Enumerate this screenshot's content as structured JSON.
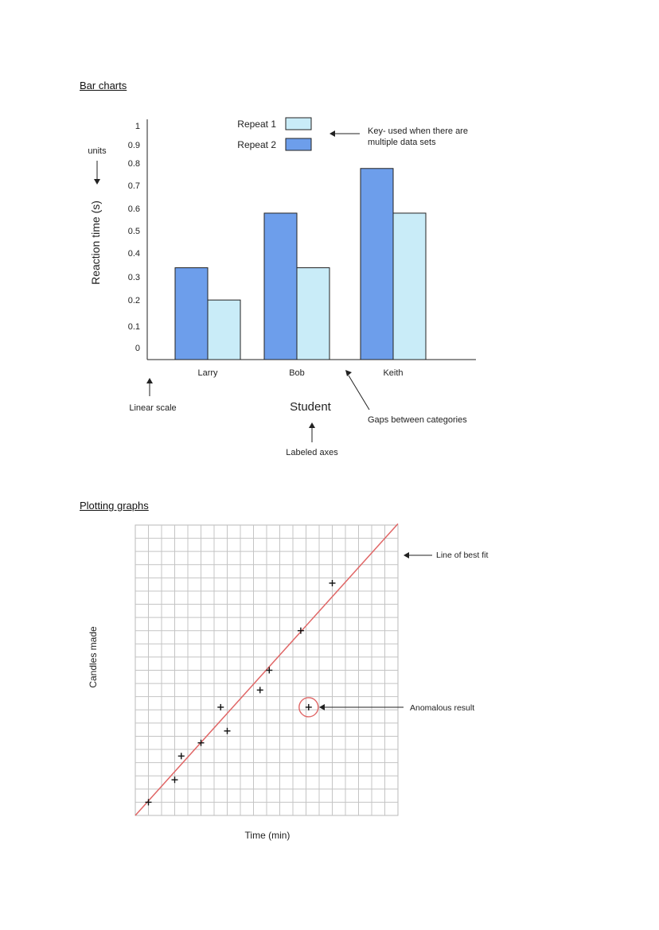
{
  "headings": {
    "bar": "Bar charts",
    "plot": "Plotting graphs"
  },
  "chart_data": [
    {
      "type": "bar",
      "categories": [
        "Larry",
        "Bob",
        "Keith"
      ],
      "series": [
        {
          "name": "Repeat 2",
          "color": "#6d9eeb",
          "values": [
            0.37,
            0.59,
            0.77
          ]
        },
        {
          "name": "Repeat 1",
          "color": "#c9ecf8",
          "values": [
            0.24,
            0.37,
            0.59
          ]
        }
      ],
      "legend_order": [
        "Repeat 1",
        "Repeat 2"
      ],
      "yticks": [
        "0",
        "0.1",
        "0.2",
        "0.3",
        "0.4",
        "0.5",
        "0.6",
        "0.7",
        "0.8",
        "0.9",
        "1"
      ],
      "ylim": [
        0,
        1
      ],
      "xlabel": "Student",
      "ylabel": "Reaction time (s)",
      "legend_position": "top",
      "grid": false,
      "annotations": {
        "key": [
          "Key- used when there are",
          "multiple data sets"
        ],
        "units": "units",
        "linear_scale": "Linear scale",
        "labeled_axes": "Labeled axes",
        "gaps": "Gaps between categories"
      }
    },
    {
      "type": "scatter",
      "xlabel": "Time (min)",
      "ylabel": "Candles made",
      "grid": true,
      "xlim": [
        0,
        20
      ],
      "ylim": [
        0,
        22
      ],
      "points": [
        {
          "x": 1,
          "y": 1
        },
        {
          "x": 3,
          "y": 2.7
        },
        {
          "x": 3.5,
          "y": 4.5
        },
        {
          "x": 5,
          "y": 5.5
        },
        {
          "x": 6.5,
          "y": 8.2
        },
        {
          "x": 7,
          "y": 6.4
        },
        {
          "x": 9.5,
          "y": 9.5
        },
        {
          "x": 10.2,
          "y": 11
        },
        {
          "x": 12.6,
          "y": 14
        },
        {
          "x": 15,
          "y": 17.6
        }
      ],
      "anomalous_point": {
        "x": 13.2,
        "y": 8.2
      },
      "best_fit": {
        "x1": 0,
        "y1": 0,
        "x2": 20,
        "y2": 22.1,
        "color": "#e06666"
      },
      "annotations": {
        "best_fit": "Line of best fit",
        "anomaly": "Anomalous result"
      }
    }
  ]
}
